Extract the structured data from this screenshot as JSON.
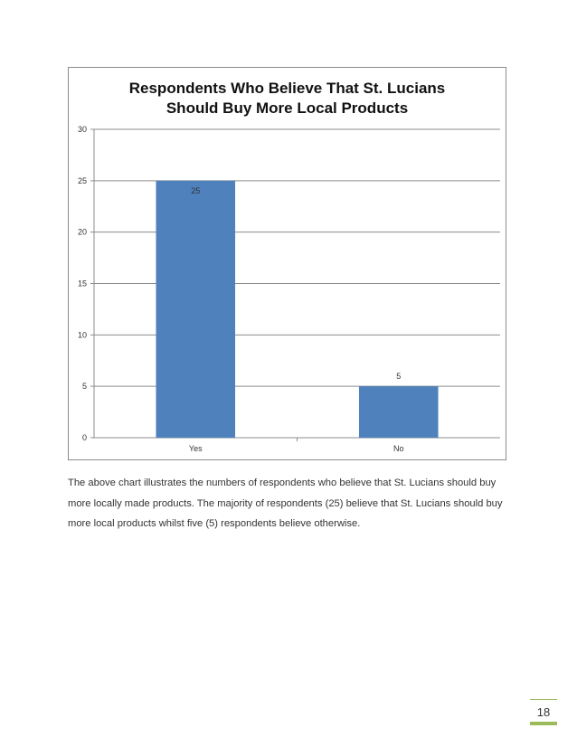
{
  "chart_data": {
    "type": "bar",
    "title_lines": [
      "Respondents Who Believe That St. Lucians",
      "Should Buy More Local Products"
    ],
    "categories": [
      "Yes",
      "No"
    ],
    "values": [
      25,
      5
    ],
    "data_labels": [
      "25",
      "5"
    ],
    "ylim": [
      0,
      30
    ],
    "yticks": [
      "0",
      "5",
      "10",
      "15",
      "20",
      "25",
      "30"
    ],
    "grid": true,
    "legend": "none",
    "bar_color": "#4f81bd"
  },
  "body": {
    "line1": "The above chart illustrates the numbers of respondents who believe that St. Lucians should buy",
    "line2": "more locally made products. The majority of respondents (25) believe that St. Lucians should buy",
    "line3": "more local products whilst five (5) respondents believe otherwise."
  },
  "page": {
    "number": "18",
    "accent_color": "#9bbb59"
  }
}
